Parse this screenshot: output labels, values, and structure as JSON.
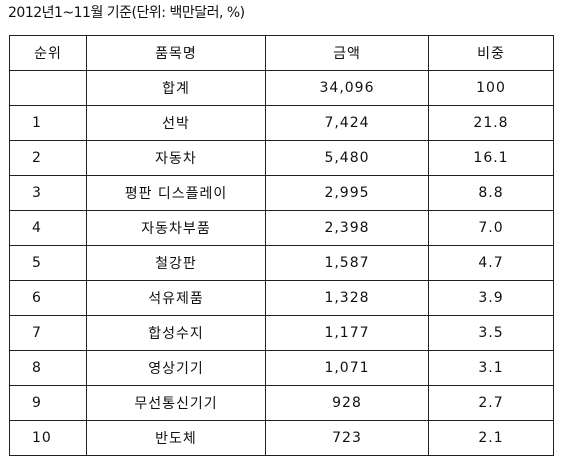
{
  "caption": "2012년1~11월 기준(단위: 백만달러, %)",
  "table": {
    "header": [
      "순위",
      "품목명",
      "금액",
      "비중"
    ],
    "total": {
      "item": "합계",
      "amount": "34,096",
      "share": "100"
    },
    "rows": [
      {
        "rank": "1",
        "item": "선박",
        "amount": "7,424",
        "share": "21.8"
      },
      {
        "rank": "2",
        "item": "자동차",
        "amount": "5,480",
        "share": "16.1"
      },
      {
        "rank": "3",
        "item": "평판 디스플레이",
        "amount": "2,995",
        "share": "8.8"
      },
      {
        "rank": "4",
        "item": "자동차부품",
        "amount": "2,398",
        "share": "7.0"
      },
      {
        "rank": "5",
        "item": "철강판",
        "amount": "1,587",
        "share": "4.7"
      },
      {
        "rank": "6",
        "item": "석유제품",
        "amount": "1,328",
        "share": "3.9"
      },
      {
        "rank": "7",
        "item": "합성수지",
        "amount": "1,177",
        "share": "3.5"
      },
      {
        "rank": "8",
        "item": "영상기기",
        "amount": "1,071",
        "share": "3.1"
      },
      {
        "rank": "9",
        "item": "무선통신기기",
        "amount": "928",
        "share": "2.7"
      },
      {
        "rank": "10",
        "item": "반도체",
        "amount": "723",
        "share": "2.1"
      }
    ]
  }
}
